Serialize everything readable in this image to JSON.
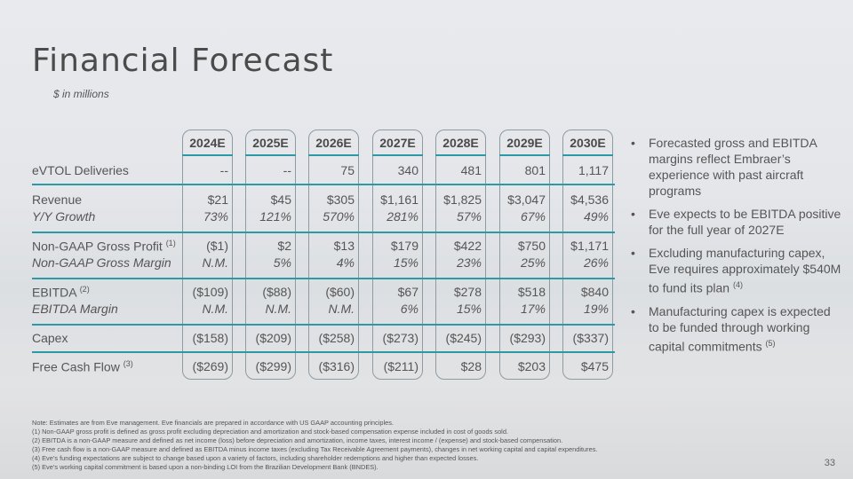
{
  "title": "Financial Forecast",
  "subtitle": "$ in millions",
  "columns": [
    "2024E",
    "2025E",
    "2026E",
    "2027E",
    "2028E",
    "2029E",
    "2030E"
  ],
  "rows": [
    {
      "label": "eVTOL Deliveries",
      "sup": "",
      "italic": false,
      "values": [
        "--",
        "--",
        "75",
        "340",
        "481",
        "801",
        "1,117"
      ]
    },
    {
      "label": "Revenue",
      "sup": "",
      "italic": false,
      "values": [
        "$21",
        "$45",
        "$305",
        "$1,161",
        "$1,825",
        "$3,047",
        "$4,536"
      ]
    },
    {
      "label": "Y/Y Growth",
      "sup": "",
      "italic": true,
      "values": [
        "73%",
        "121%",
        "570%",
        "281%",
        "57%",
        "67%",
        "49%"
      ]
    },
    {
      "label": "Non-GAAP Gross Profit",
      "sup": "(1)",
      "italic": false,
      "values": [
        "($1)",
        "$2",
        "$13",
        "$179",
        "$422",
        "$750",
        "$1,171"
      ]
    },
    {
      "label": "Non-GAAP Gross Margin",
      "sup": "",
      "italic": true,
      "values": [
        "N.M.",
        "5%",
        "4%",
        "15%",
        "23%",
        "25%",
        "26%"
      ]
    },
    {
      "label": "EBITDA",
      "sup": "(2)",
      "italic": false,
      "values": [
        "($109)",
        "($88)",
        "($60)",
        "$67",
        "$278",
        "$518",
        "$840"
      ]
    },
    {
      "label": "EBITDA Margin",
      "sup": "",
      "italic": true,
      "values": [
        "N.M.",
        "N.M.",
        "N.M.",
        "6%",
        "15%",
        "17%",
        "19%"
      ]
    },
    {
      "label": "Capex",
      "sup": "",
      "italic": false,
      "values": [
        "($158)",
        "($209)",
        "($258)",
        "($273)",
        "($245)",
        "($293)",
        "($337)"
      ]
    },
    {
      "label": "Free Cash Flow",
      "sup": "(3)",
      "italic": false,
      "values": [
        "($269)",
        "($299)",
        "($316)",
        "($211)",
        "$28",
        "$203",
        "$475"
      ]
    }
  ],
  "bullets": [
    {
      "text": "Forecasted gross and EBITDA margins reflect Embraer’s experience with past aircraft programs",
      "sup": ""
    },
    {
      "text": "Eve expects to be EBITDA positive for the full year of 2027E",
      "sup": ""
    },
    {
      "text": "Excluding manufacturing capex, Eve requires approximately $540M to fund its plan",
      "sup": "(4)"
    },
    {
      "text": "Manufacturing capex is expected to be funded through working capital commitments",
      "sup": "(5)"
    }
  ],
  "notes": [
    "Note: Estimates are from Eve management. Eve financials are prepared in accordance with US GAAP accounting principles.",
    "(1) Non-GAAP gross profit is defined as gross profit excluding depreciation and amortization and stock-based compensation expense included in cost of goods sold.",
    "(2) EBITDA is a non-GAAP measure and defined as net income (loss) before depreciation and amortization, income taxes, interest income / (expense) and stock-based compensation.",
    "(3) Free cash flow is a non-GAAP measure and defined as EBITDA minus income taxes (excluding Tax Receivable Agreement payments), changes in net working capital and capital expenditures.",
    "(4) Eve’s funding expectations are subject to change based upon a variety of factors, including shareholder redemptions and higher than expected losses.",
    "(5) Eve’s working capital commitment is based upon a non-binding LOI from the Brazilian Development Bank (BNDES)."
  ],
  "page_number": "33"
}
